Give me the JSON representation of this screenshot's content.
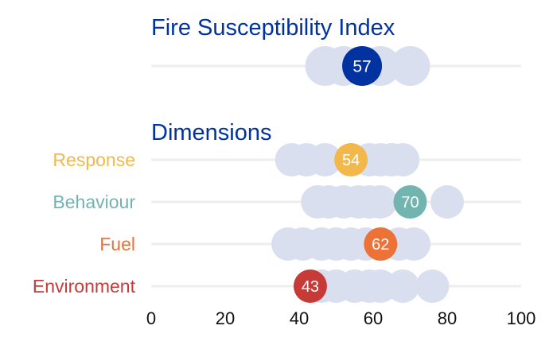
{
  "chart_data": {
    "type": "scatter",
    "title": "Fire Susceptibility Index",
    "section_title": "Dimensions",
    "xlim": [
      0,
      100
    ],
    "xticks": [
      0,
      20,
      40,
      60,
      80,
      100
    ],
    "grid": false,
    "background_color": "#dadfef",
    "index_row": {
      "name": "Fire Susceptibility Index",
      "value": 57,
      "color": "#0033a0",
      "others": [
        47,
        52,
        62,
        70
      ]
    },
    "dimensions": [
      {
        "name": "Response",
        "value": 54,
        "color": "#f2b84b",
        "others": [
          38,
          42,
          47,
          59,
          62,
          65,
          68
        ]
      },
      {
        "name": "Behaviour",
        "value": 70,
        "color": "#72b4b0",
        "others": [
          45,
          48,
          52,
          56,
          59,
          62,
          80
        ]
      },
      {
        "name": "Fuel",
        "value": 62,
        "color": "#ec7238",
        "others": [
          37,
          41,
          46,
          50,
          54,
          58,
          67,
          71
        ]
      },
      {
        "name": "Environment",
        "value": 43,
        "color": "#c63a38",
        "others": [
          46,
          50,
          55,
          59,
          62,
          68,
          76
        ]
      }
    ]
  }
}
